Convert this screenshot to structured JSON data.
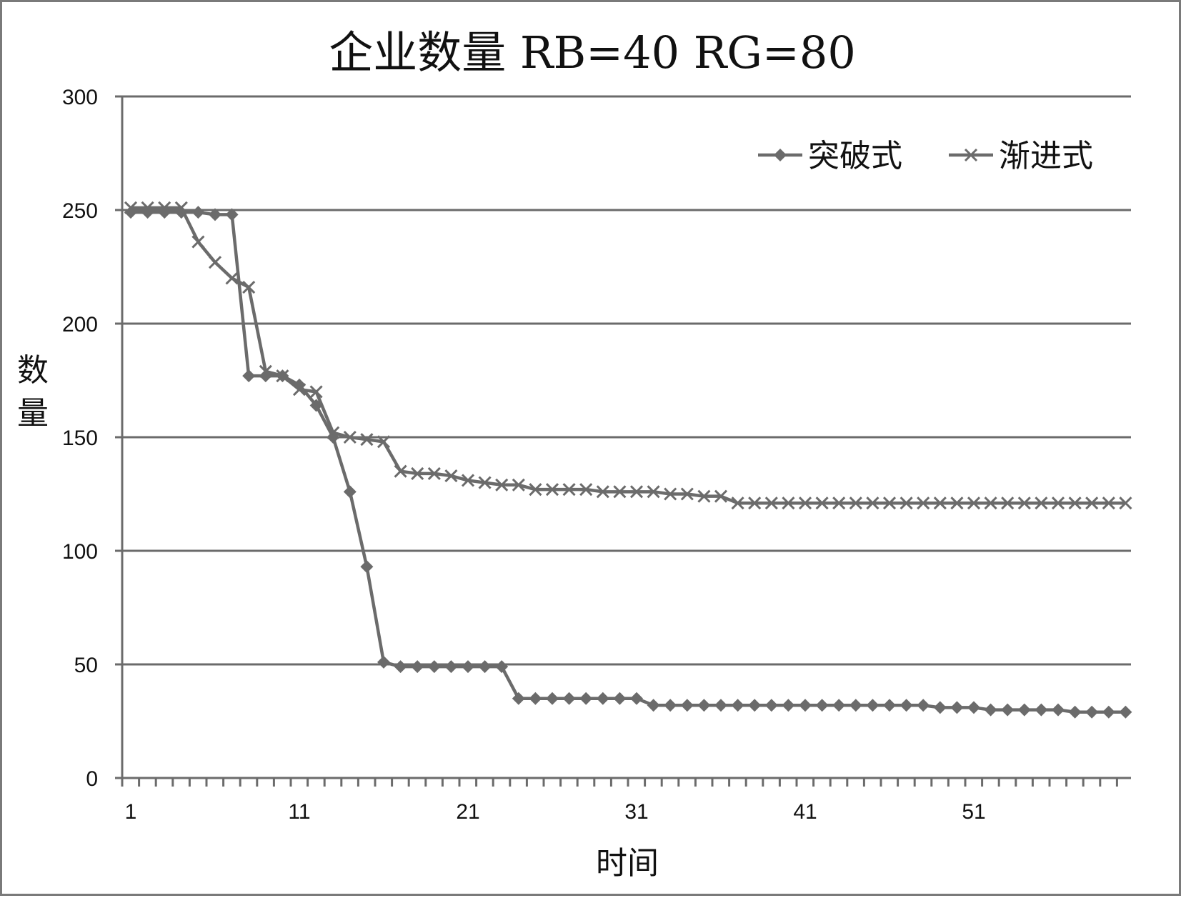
{
  "chart_data": {
    "type": "line",
    "title": "企业数量 RB=40 RG=80",
    "xlabel": "时间",
    "ylabel": "数量",
    "ylim": [
      0,
      300
    ],
    "yticks": [
      0,
      50,
      100,
      150,
      200,
      250,
      300
    ],
    "xlim": [
      1,
      60
    ],
    "xtick_labels": [
      1,
      11,
      21,
      31,
      41,
      51
    ],
    "grid": "horizontal",
    "legend_position": "top-right",
    "colors": {
      "line": "#6b6b6b",
      "grid": "#6b6b6b",
      "axis": "#6b6b6b"
    },
    "x": [
      1,
      2,
      3,
      4,
      5,
      6,
      7,
      8,
      9,
      10,
      11,
      12,
      13,
      14,
      15,
      16,
      17,
      18,
      19,
      20,
      21,
      22,
      23,
      24,
      25,
      26,
      27,
      28,
      29,
      30,
      31,
      32,
      33,
      34,
      35,
      36,
      37,
      38,
      39,
      40,
      41,
      42,
      43,
      44,
      45,
      46,
      47,
      48,
      49,
      50,
      51,
      52,
      53,
      54,
      55,
      56,
      57,
      58,
      59,
      60
    ],
    "series": [
      {
        "name": "突破式",
        "marker": "diamond",
        "values": [
          249,
          249,
          249,
          249,
          249,
          248,
          248,
          177,
          177,
          177,
          173,
          164,
          150,
          126,
          93,
          51,
          49,
          49,
          49,
          49,
          49,
          49,
          49,
          35,
          35,
          35,
          35,
          35,
          35,
          35,
          35,
          32,
          32,
          32,
          32,
          32,
          32,
          32,
          32,
          32,
          32,
          32,
          32,
          32,
          32,
          32,
          32,
          32,
          31,
          31,
          31,
          30,
          30,
          30,
          30,
          30,
          29,
          29,
          29,
          29
        ]
      },
      {
        "name": "渐进式",
        "marker": "x",
        "values": [
          251,
          251,
          251,
          251,
          236,
          227,
          220,
          216,
          179,
          177,
          171,
          170,
          152,
          150,
          149,
          148,
          135,
          134,
          134,
          133,
          131,
          130,
          129,
          129,
          127,
          127,
          127,
          127,
          126,
          126,
          126,
          126,
          125,
          125,
          124,
          124,
          121,
          121,
          121,
          121,
          121,
          121,
          121,
          121,
          121,
          121,
          121,
          121,
          121,
          121,
          121,
          121,
          121,
          121,
          121,
          121,
          121,
          121,
          121,
          121
        ]
      }
    ]
  }
}
